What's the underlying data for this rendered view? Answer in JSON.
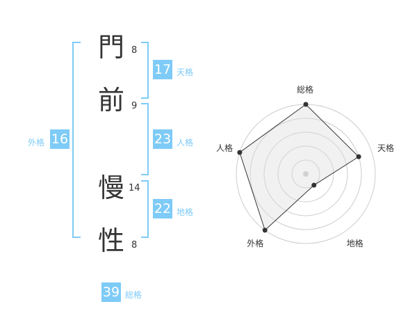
{
  "name": {
    "chars": [
      {
        "char": "門",
        "strokes": "8"
      },
      {
        "char": "前",
        "strokes": "9"
      },
      {
        "char": "慢",
        "strokes": "14"
      },
      {
        "char": "性",
        "strokes": "8"
      }
    ]
  },
  "fortune": {
    "tenkaku": {
      "label": "天格",
      "value": "17"
    },
    "jinkaku": {
      "label": "人格",
      "value": "23"
    },
    "chikaku": {
      "label": "地格",
      "value": "22"
    },
    "gaikaku": {
      "label": "外格",
      "value": "16"
    },
    "soukaku": {
      "label": "総格",
      "value": "39"
    }
  },
  "accent": "#7ecbf7",
  "chart_data": {
    "type": "radar",
    "axes": [
      "総格",
      "天格",
      "地格",
      "外格",
      "人格"
    ],
    "values": [
      5,
      4,
      1,
      5,
      5
    ],
    "range": [
      0,
      5
    ],
    "rings": 5
  }
}
